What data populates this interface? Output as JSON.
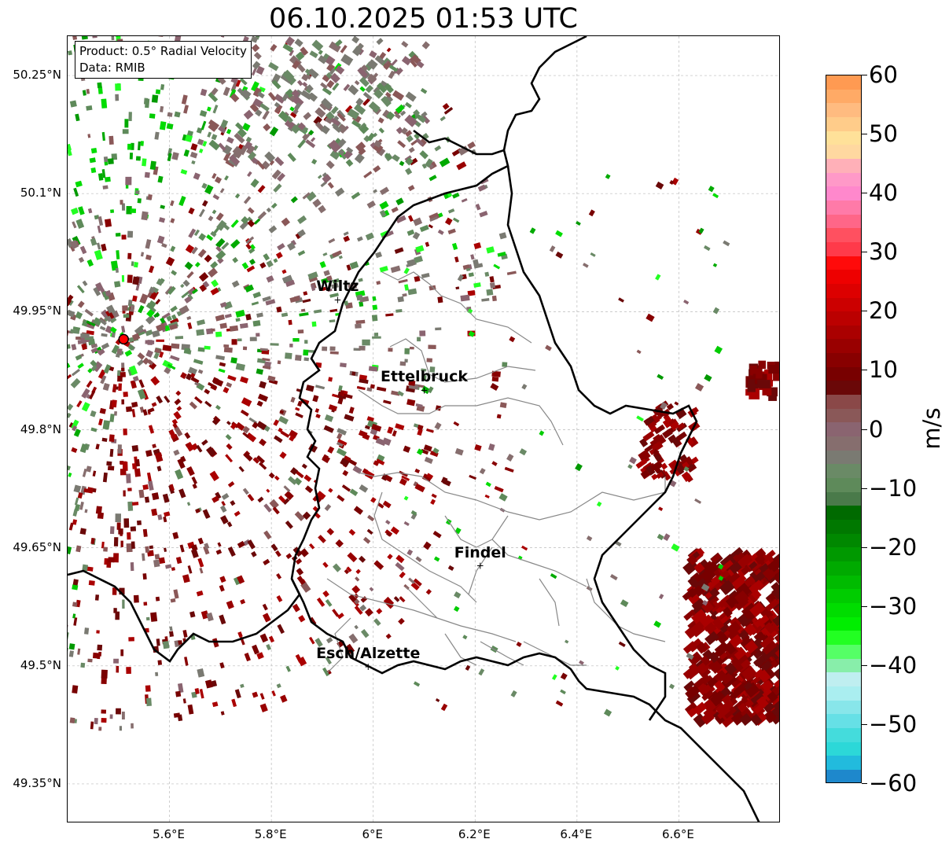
{
  "title": "06.10.2025 01:53 UTC",
  "info": {
    "product_line": "Product: 0.5° Radial Velocity",
    "data_line": "Data: RMIB"
  },
  "map": {
    "lon_range": [
      5.4,
      6.8
    ],
    "lat_range": [
      49.3,
      50.3
    ],
    "lat_ticks": [
      {
        "value": 50.25,
        "label": "50.25°N"
      },
      {
        "value": 50.1,
        "label": "50.1°N"
      },
      {
        "value": 49.95,
        "label": "49.95°N"
      },
      {
        "value": 49.8,
        "label": "49.8°N"
      },
      {
        "value": 49.65,
        "label": "49.65°N"
      },
      {
        "value": 49.5,
        "label": "49.5°N"
      },
      {
        "value": 49.35,
        "label": "49.35°N"
      }
    ],
    "lon_ticks": [
      {
        "value": 5.6,
        "label": "5.6°E"
      },
      {
        "value": 5.8,
        "label": "5.8°E"
      },
      {
        "value": 6.0,
        "label": "6°E"
      },
      {
        "value": 6.2,
        "label": "6.2°E"
      },
      {
        "value": 6.4,
        "label": "6.4°E"
      },
      {
        "value": 6.6,
        "label": "6.6°E"
      }
    ],
    "radar_site": {
      "lon": 5.51,
      "lat": 49.915,
      "color": "#ff0000"
    },
    "cities": [
      {
        "name": "Wiltz",
        "lon": 5.93,
        "lat": 49.965
      },
      {
        "name": "Ettelbruck",
        "lon": 6.1,
        "lat": 49.85
      },
      {
        "name": "Findel",
        "lon": 6.21,
        "lat": 49.627
      },
      {
        "name": "Esch/Alzette",
        "lon": 5.99,
        "lat": 49.499
      }
    ]
  },
  "colorbar": {
    "unit": "m/s",
    "range": [
      -60,
      60
    ],
    "tick_labels": [
      {
        "value": 60,
        "label": "60"
      },
      {
        "value": 50,
        "label": "50"
      },
      {
        "value": 40,
        "label": "40"
      },
      {
        "value": 30,
        "label": "30"
      },
      {
        "value": 20,
        "label": "20"
      },
      {
        "value": 10,
        "label": "10"
      },
      {
        "value": 0,
        "label": "0"
      },
      {
        "value": -10,
        "label": "−10"
      },
      {
        "value": -20,
        "label": "−20"
      },
      {
        "value": -30,
        "label": "−30"
      },
      {
        "value": -40,
        "label": "−40"
      },
      {
        "value": -50,
        "label": "−50"
      },
      {
        "value": -60,
        "label": "−60"
      }
    ],
    "colors_top_to_bottom": [
      "#ff9a52",
      "#ffaa66",
      "#ffbb80",
      "#ffcc8a",
      "#ffe199",
      "#ffd8a0",
      "#ffb0b8",
      "#ff99c8",
      "#ff88cc",
      "#ff7aa8",
      "#ff6688",
      "#ff5060",
      "#ff3a4a",
      "#ff0a0a",
      "#ee0000",
      "#dd0000",
      "#cc0000",
      "#bb0000",
      "#aa0000",
      "#990000",
      "#880000",
      "#780000",
      "#6a0808",
      "#8a4848",
      "#8a5858",
      "#8a6470",
      "#866e6e",
      "#7a7a72",
      "#6a8a66",
      "#5e8a5a",
      "#4a7a4a",
      "#006a00",
      "#007800",
      "#008800",
      "#009900",
      "#00aa00",
      "#00bb00",
      "#00cc00",
      "#00dd00",
      "#00ee00",
      "#22ff22",
      "#55ff66",
      "#88eeaa",
      "#bfeef0",
      "#aaeef0",
      "#88e6ea",
      "#66e0e6",
      "#44dcdc",
      "#2cd8d8",
      "#22bbdd",
      "#1e88cc"
    ]
  }
}
